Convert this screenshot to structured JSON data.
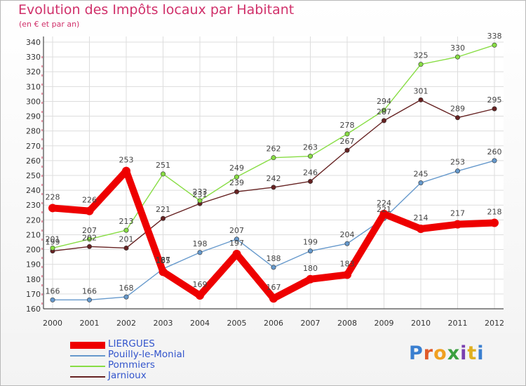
{
  "title": "Evolution des Impôts locaux par Habitant",
  "subtitle": "(en € et par an)",
  "logo": "Proxiti",
  "chart_data": {
    "type": "line",
    "title": "Evolution des Impôts locaux par Habitant",
    "subtitle": "(en € et par an)",
    "xlabel": "",
    "ylabel": "",
    "x": [
      2000,
      2001,
      2002,
      2003,
      2004,
      2005,
      2006,
      2007,
      2008,
      2009,
      2010,
      2011,
      2012
    ],
    "ylim": [
      160,
      340
    ],
    "yticks": [
      160,
      170,
      180,
      190,
      200,
      210,
      220,
      230,
      240,
      250,
      260,
      270,
      280,
      290,
      300,
      310,
      320,
      330,
      340
    ],
    "grid": true,
    "legend": "bottom-left",
    "series": [
      {
        "name": "LIERGUES",
        "color": "#ee0000",
        "values": [
          228,
          226,
          253,
          185,
          169,
          197,
          167,
          180,
          183,
          224,
          214,
          217,
          218
        ]
      },
      {
        "name": "Pouilly-le-Monial",
        "color": "#6699cc",
        "values": [
          166,
          166,
          168,
          187,
          198,
          207,
          188,
          199,
          204,
          221,
          245,
          253,
          260
        ]
      },
      {
        "name": "Pommiers",
        "color": "#88dd44",
        "values": [
          201,
          207,
          213,
          251,
          233,
          249,
          262,
          263,
          278,
          294,
          325,
          330,
          338
        ]
      },
      {
        "name": "Jarnioux",
        "color": "#662222",
        "values": [
          199,
          202,
          201,
          221,
          231,
          239,
          242,
          246,
          267,
          287,
          301,
          289,
          295
        ]
      }
    ]
  }
}
